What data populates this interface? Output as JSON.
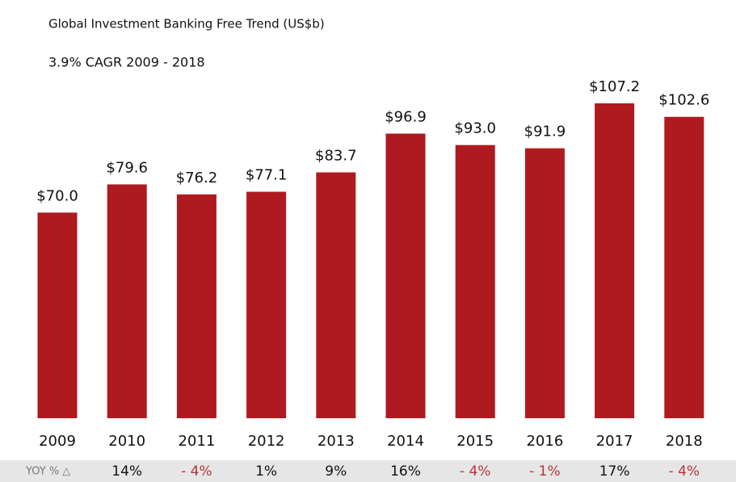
{
  "chart_data": {
    "type": "bar",
    "title": "Global Investment Banking Free Trend (US$b)",
    "subtitle": "3.9%  CAGR  2009 - 2018",
    "categories": [
      "2009",
      "2010",
      "2011",
      "2012",
      "2013",
      "2014",
      "2015",
      "2016",
      "2017",
      "2018"
    ],
    "values": [
      70.0,
      79.6,
      76.2,
      77.1,
      83.7,
      96.9,
      93.0,
      91.9,
      107.2,
      102.6
    ],
    "value_labels": [
      "$70.0",
      "$79.6",
      "$76.2",
      "$77.1",
      "$83.7",
      "$96.9",
      "$93.0",
      "$91.9",
      "$107.2",
      "$102.6"
    ],
    "color": "#ae1a20",
    "yoy": {
      "label": "YOY % △",
      "values": [
        "14%",
        "- 4%",
        "1%",
        "9%",
        "16%",
        "- 4%",
        "- 1%",
        "17%",
        "- 4%"
      ],
      "negative_color": "#b5353a"
    }
  }
}
